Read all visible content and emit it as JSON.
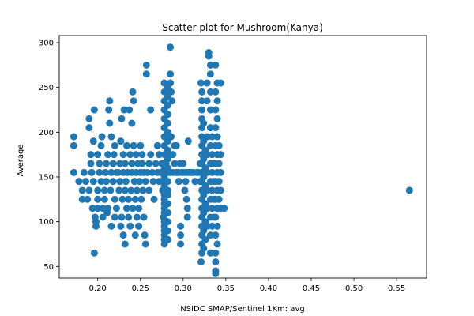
{
  "chart_data": {
    "type": "scatter",
    "title": "Scatter plot for Mushroom(Kanya)",
    "xlabel": "NSIDC SMAP/Sentinel 1Km: avg",
    "ylabel": "Average",
    "xlim": [
      0.155,
      0.585
    ],
    "ylim": [
      37,
      308
    ],
    "x_ticks": [
      "0.20",
      "0.25",
      "0.30",
      "0.35",
      "0.40",
      "0.45",
      "0.50",
      "0.55"
    ],
    "y_ticks": [
      "50",
      "100",
      "150",
      "200",
      "250",
      "300"
    ],
    "grid": false,
    "legend": "none",
    "marker_color": "#1f77b4",
    "series": [
      {
        "values": [
          [
            0.172,
            195
          ],
          [
            0.172,
            185
          ],
          [
            0.172,
            155
          ],
          [
            0.178,
            145
          ],
          [
            0.182,
            135
          ],
          [
            0.182,
            125
          ],
          [
            0.184,
            155
          ],
          [
            0.186,
            145
          ],
          [
            0.188,
            125
          ],
          [
            0.19,
            135
          ],
          [
            0.19,
            205
          ],
          [
            0.19,
            215
          ],
          [
            0.192,
            165
          ],
          [
            0.192,
            175
          ],
          [
            0.193,
            155
          ],
          [
            0.194,
            115
          ],
          [
            0.195,
            145
          ],
          [
            0.195,
            190
          ],
          [
            0.196,
            225
          ],
          [
            0.196,
            65
          ],
          [
            0.197,
            105
          ],
          [
            0.198,
            95
          ],
          [
            0.198,
            100
          ],
          [
            0.2,
            175
          ],
          [
            0.2,
            135
          ],
          [
            0.2,
            125
          ],
          [
            0.2,
            115
          ],
          [
            0.202,
            155
          ],
          [
            0.202,
            165
          ],
          [
            0.204,
            185
          ],
          [
            0.204,
            145
          ],
          [
            0.205,
            195
          ],
          [
            0.206,
            105
          ],
          [
            0.206,
            115
          ],
          [
            0.208,
            135
          ],
          [
            0.208,
            125
          ],
          [
            0.209,
            155
          ],
          [
            0.21,
            165
          ],
          [
            0.21,
            145
          ],
          [
            0.211,
            110
          ],
          [
            0.212,
            175
          ],
          [
            0.212,
            115
          ],
          [
            0.213,
            225
          ],
          [
            0.214,
            235
          ],
          [
            0.214,
            210
          ],
          [
            0.215,
            135
          ],
          [
            0.216,
            155
          ],
          [
            0.216,
            195
          ],
          [
            0.216,
            95
          ],
          [
            0.218,
            165
          ],
          [
            0.218,
            145
          ],
          [
            0.219,
            175
          ],
          [
            0.22,
            125
          ],
          [
            0.22,
            185
          ],
          [
            0.22,
            105
          ],
          [
            0.222,
            115
          ],
          [
            0.222,
            155
          ],
          [
            0.224,
            155
          ],
          [
            0.225,
            135
          ],
          [
            0.226,
            145
          ],
          [
            0.226,
            165
          ],
          [
            0.227,
            190
          ],
          [
            0.227,
            95
          ],
          [
            0.228,
            105
          ],
          [
            0.228,
            215
          ],
          [
            0.229,
            125
          ],
          [
            0.23,
            175
          ],
          [
            0.23,
            155
          ],
          [
            0.23,
            85
          ],
          [
            0.231,
            225
          ],
          [
            0.232,
            135
          ],
          [
            0.232,
            165
          ],
          [
            0.232,
            75
          ],
          [
            0.233,
            145
          ],
          [
            0.234,
            115
          ],
          [
            0.234,
            185
          ],
          [
            0.235,
            155
          ],
          [
            0.236,
            105
          ],
          [
            0.236,
            125
          ],
          [
            0.237,
            225
          ],
          [
            0.238,
            175
          ],
          [
            0.238,
            95
          ],
          [
            0.239,
            135
          ],
          [
            0.24,
            165
          ],
          [
            0.24,
            155
          ],
          [
            0.24,
            210
          ],
          [
            0.241,
            115
          ],
          [
            0.241,
            245
          ],
          [
            0.242,
            235
          ],
          [
            0.242,
            185
          ],
          [
            0.243,
            145
          ],
          [
            0.244,
            125
          ],
          [
            0.244,
            85
          ],
          [
            0.245,
            155
          ],
          [
            0.245,
            175
          ],
          [
            0.246,
            105
          ],
          [
            0.246,
            135
          ],
          [
            0.247,
            165
          ],
          [
            0.248,
            95
          ],
          [
            0.248,
            115
          ],
          [
            0.249,
            145
          ],
          [
            0.25,
            155
          ],
          [
            0.25,
            185
          ],
          [
            0.251,
            125
          ],
          [
            0.252,
            175
          ],
          [
            0.252,
            165
          ],
          [
            0.253,
            135
          ],
          [
            0.254,
            155
          ],
          [
            0.254,
            105
          ],
          [
            0.255,
            85
          ],
          [
            0.256,
            145
          ],
          [
            0.256,
            75
          ],
          [
            0.257,
            265
          ],
          [
            0.257,
            275
          ],
          [
            0.258,
            155
          ],
          [
            0.26,
            165
          ],
          [
            0.26,
            135
          ],
          [
            0.262,
            175
          ],
          [
            0.262,
            225
          ],
          [
            0.264,
            155
          ],
          [
            0.265,
            145
          ],
          [
            0.266,
            125
          ],
          [
            0.268,
            165
          ],
          [
            0.27,
            155
          ],
          [
            0.27,
            185
          ],
          [
            0.272,
            175
          ],
          [
            0.272,
            145
          ],
          [
            0.274,
            155
          ],
          [
            0.275,
            165
          ],
          [
            0.276,
            135
          ],
          [
            0.277,
            105
          ],
          [
            0.278,
            75
          ],
          [
            0.278,
            80
          ],
          [
            0.278,
            85
          ],
          [
            0.278,
            90
          ],
          [
            0.278,
            95
          ],
          [
            0.278,
            100
          ],
          [
            0.278,
            110
          ],
          [
            0.278,
            115
          ],
          [
            0.278,
            120
          ],
          [
            0.278,
            125
          ],
          [
            0.278,
            130
          ],
          [
            0.278,
            140
          ],
          [
            0.278,
            145
          ],
          [
            0.278,
            150
          ],
          [
            0.278,
            160
          ],
          [
            0.278,
            165
          ],
          [
            0.278,
            175
          ],
          [
            0.278,
            185
          ],
          [
            0.278,
            195
          ],
          [
            0.278,
            205
          ],
          [
            0.278,
            215
          ],
          [
            0.278,
            225
          ],
          [
            0.278,
            235
          ],
          [
            0.278,
            245
          ],
          [
            0.278,
            255
          ],
          [
            0.28,
            165
          ],
          [
            0.28,
            175
          ],
          [
            0.28,
            155
          ],
          [
            0.282,
            135
          ],
          [
            0.282,
            80
          ],
          [
            0.282,
            90
          ],
          [
            0.282,
            100
          ],
          [
            0.282,
            110
          ],
          [
            0.282,
            120
          ],
          [
            0.282,
            130
          ],
          [
            0.282,
            145
          ],
          [
            0.282,
            160
          ],
          [
            0.282,
            170
          ],
          [
            0.282,
            180
          ],
          [
            0.282,
            190
          ],
          [
            0.282,
            200
          ],
          [
            0.282,
            210
          ],
          [
            0.282,
            220
          ],
          [
            0.282,
            230
          ],
          [
            0.282,
            240
          ],
          [
            0.282,
            250
          ],
          [
            0.284,
            155
          ],
          [
            0.284,
            175
          ],
          [
            0.285,
            255
          ],
          [
            0.285,
            265
          ],
          [
            0.285,
            295
          ],
          [
            0.286,
            195
          ],
          [
            0.286,
            245
          ],
          [
            0.287,
            235
          ],
          [
            0.288,
            175
          ],
          [
            0.288,
            155
          ],
          [
            0.29,
            165
          ],
          [
            0.29,
            185
          ],
          [
            0.292,
            185
          ],
          [
            0.292,
            155
          ],
          [
            0.294,
            155
          ],
          [
            0.295,
            145
          ],
          [
            0.296,
            165
          ],
          [
            0.297,
            95
          ],
          [
            0.297,
            85
          ],
          [
            0.297,
            75
          ],
          [
            0.298,
            155
          ],
          [
            0.3,
            165
          ],
          [
            0.3,
            155
          ],
          [
            0.302,
            135
          ],
          [
            0.303,
            145
          ],
          [
            0.303,
            155
          ],
          [
            0.304,
            125
          ],
          [
            0.305,
            115
          ],
          [
            0.305,
            105
          ],
          [
            0.306,
            155
          ],
          [
            0.306,
            190
          ],
          [
            0.308,
            155
          ],
          [
            0.31,
            155
          ],
          [
            0.312,
            155
          ],
          [
            0.314,
            145
          ],
          [
            0.316,
            155
          ],
          [
            0.318,
            155
          ],
          [
            0.32,
            165
          ],
          [
            0.32,
            145
          ],
          [
            0.321,
            255
          ],
          [
            0.321,
            55
          ],
          [
            0.322,
            65
          ],
          [
            0.322,
            75
          ],
          [
            0.322,
            85
          ],
          [
            0.322,
            95
          ],
          [
            0.322,
            105
          ],
          [
            0.322,
            115
          ],
          [
            0.322,
            125
          ],
          [
            0.322,
            135
          ],
          [
            0.322,
            145
          ],
          [
            0.322,
            155
          ],
          [
            0.322,
            165
          ],
          [
            0.322,
            175
          ],
          [
            0.322,
            185
          ],
          [
            0.322,
            195
          ],
          [
            0.322,
            205
          ],
          [
            0.322,
            215
          ],
          [
            0.322,
            225
          ],
          [
            0.322,
            235
          ],
          [
            0.322,
            245
          ],
          [
            0.324,
            70
          ],
          [
            0.324,
            90
          ],
          [
            0.324,
            110
          ],
          [
            0.324,
            130
          ],
          [
            0.324,
            150
          ],
          [
            0.324,
            170
          ],
          [
            0.324,
            190
          ],
          [
            0.324,
            210
          ],
          [
            0.326,
            140
          ],
          [
            0.326,
            160
          ],
          [
            0.326,
            180
          ],
          [
            0.326,
            120
          ],
          [
            0.326,
            100
          ],
          [
            0.326,
            80
          ],
          [
            0.328,
            155
          ],
          [
            0.328,
            175
          ],
          [
            0.328,
            135
          ],
          [
            0.328,
            115
          ],
          [
            0.328,
            195
          ],
          [
            0.328,
            95
          ],
          [
            0.328,
            235
          ],
          [
            0.328,
            255
          ],
          [
            0.33,
            289
          ],
          [
            0.33,
            285
          ],
          [
            0.332,
            275
          ],
          [
            0.332,
            265
          ],
          [
            0.332,
            245
          ],
          [
            0.332,
            225
          ],
          [
            0.332,
            205
          ],
          [
            0.332,
            185
          ],
          [
            0.332,
            165
          ],
          [
            0.332,
            145
          ],
          [
            0.332,
            125
          ],
          [
            0.332,
            105
          ],
          [
            0.332,
            85
          ],
          [
            0.332,
            65
          ],
          [
            0.334,
            155
          ],
          [
            0.334,
            135
          ],
          [
            0.334,
            115
          ],
          [
            0.334,
            95
          ],
          [
            0.334,
            175
          ],
          [
            0.334,
            195
          ],
          [
            0.336,
            145
          ],
          [
            0.336,
            165
          ],
          [
            0.336,
            125
          ],
          [
            0.336,
            105
          ],
          [
            0.338,
            275
          ],
          [
            0.338,
            245
          ],
          [
            0.338,
            225
          ],
          [
            0.338,
            205
          ],
          [
            0.338,
            185
          ],
          [
            0.338,
            165
          ],
          [
            0.338,
            145
          ],
          [
            0.338,
            125
          ],
          [
            0.338,
            105
          ],
          [
            0.338,
            85
          ],
          [
            0.338,
            65
          ],
          [
            0.338,
            55
          ],
          [
            0.338,
            45
          ],
          [
            0.338,
            42
          ],
          [
            0.34,
            255
          ],
          [
            0.34,
            235
          ],
          [
            0.34,
            215
          ],
          [
            0.34,
            195
          ],
          [
            0.34,
            175
          ],
          [
            0.34,
            155
          ],
          [
            0.34,
            135
          ],
          [
            0.34,
            115
          ],
          [
            0.34,
            95
          ],
          [
            0.34,
            75
          ],
          [
            0.342,
            165
          ],
          [
            0.342,
            145
          ],
          [
            0.342,
            125
          ],
          [
            0.342,
            185
          ],
          [
            0.344,
            255
          ],
          [
            0.344,
            175
          ],
          [
            0.344,
            155
          ],
          [
            0.344,
            135
          ],
          [
            0.344,
            115
          ],
          [
            0.348,
            115
          ],
          [
            0.565,
            135
          ]
        ]
      }
    ]
  }
}
